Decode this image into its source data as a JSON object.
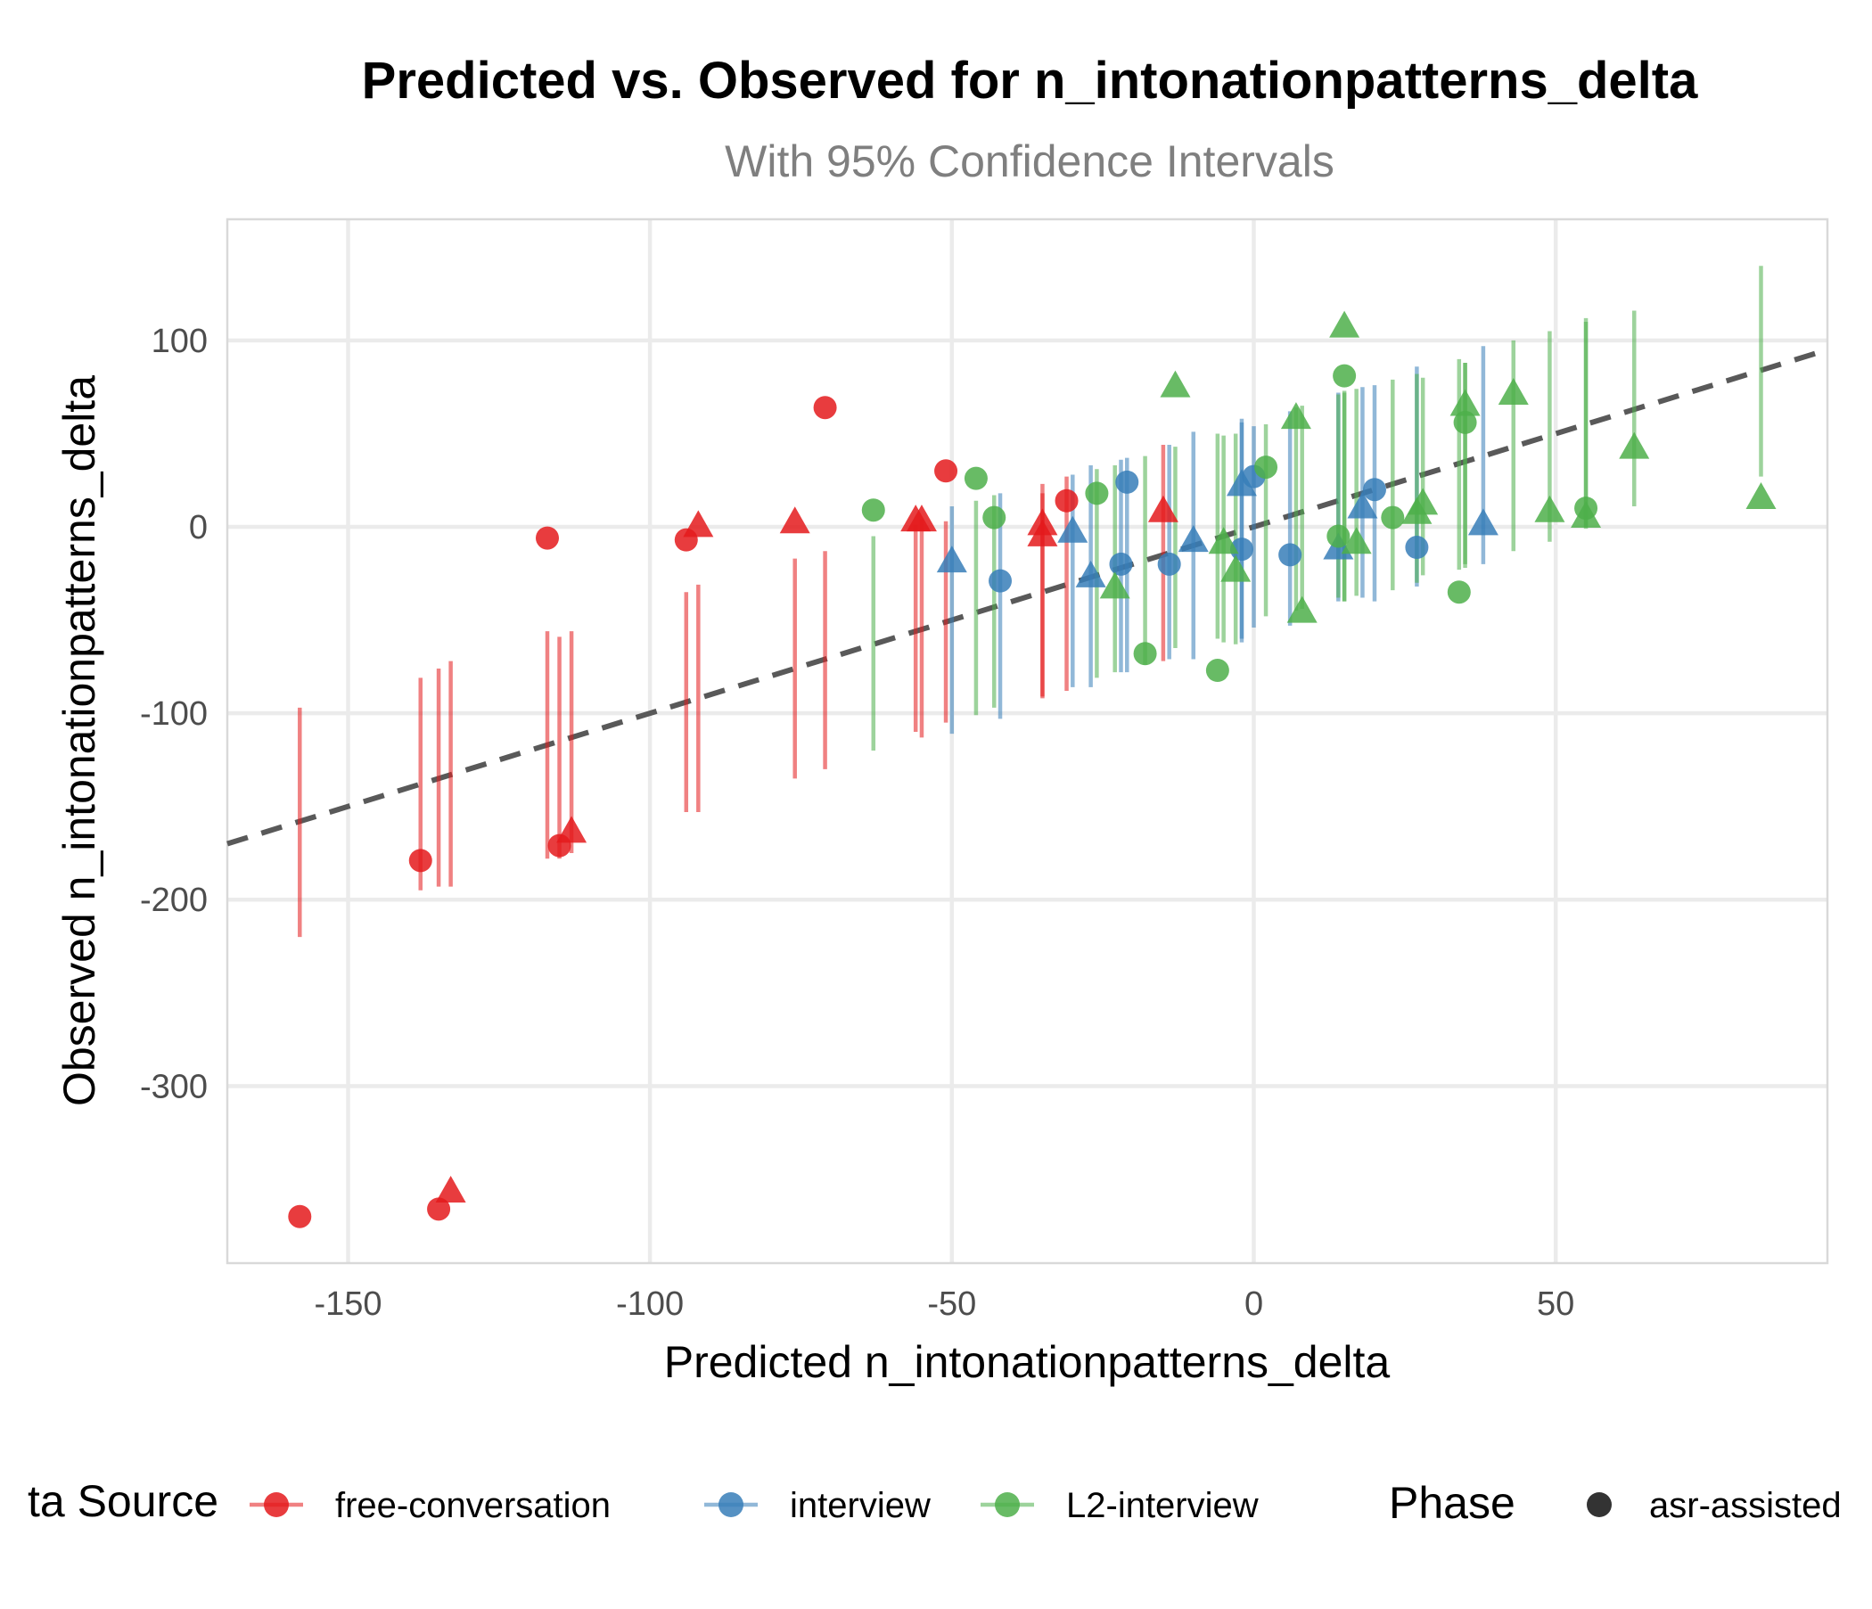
{
  "chart_data": {
    "type": "scatter",
    "title": "Predicted vs. Observed for n_intonationpatterns_delta",
    "subtitle": "With 95% Confidence Intervals",
    "xlabel": "Predicted n_intonationpatterns_delta",
    "ylabel": "Observed n_intonationpatterns_delta",
    "xlim": [
      -170,
      95
    ],
    "ylim": [
      -395,
      165
    ],
    "x_ticks": [
      -150,
      -100,
      -50,
      0,
      50
    ],
    "y_ticks": [
      -300,
      -200,
      -100,
      0,
      100
    ],
    "grid": true,
    "reference_line": {
      "type": "identity",
      "style": "dashed",
      "color": "#595959"
    },
    "legend": {
      "position": "bottom",
      "source_title": "ta Source",
      "phase_title": "Phase",
      "phase_label": "asr-assisted"
    },
    "series": [
      {
        "name": "free-conversation",
        "color": "#e41a1c",
        "points": [
          {
            "x": -158,
            "y": -370,
            "lo": -220,
            "hi": -97,
            "shape": "circle"
          },
          {
            "x": -138,
            "y": -179,
            "lo": -195,
            "hi": -81,
            "shape": "circle"
          },
          {
            "x": -135,
            "y": -366,
            "lo": -193,
            "hi": -76,
            "shape": "circle"
          },
          {
            "x": -133,
            "y": -357,
            "lo": -193,
            "hi": -72,
            "shape": "triangle"
          },
          {
            "x": -117,
            "y": -6,
            "lo": -178,
            "hi": -56,
            "shape": "circle"
          },
          {
            "x": -115,
            "y": -171,
            "lo": -178,
            "hi": -59,
            "shape": "circle"
          },
          {
            "x": -113,
            "y": -164,
            "lo": -175,
            "hi": -56,
            "shape": "triangle"
          },
          {
            "x": -94,
            "y": -7,
            "lo": -153,
            "hi": -35,
            "shape": "circle"
          },
          {
            "x": -92,
            "y": 0,
            "lo": -153,
            "hi": -31,
            "shape": "triangle"
          },
          {
            "x": -76,
            "y": 2,
            "lo": -135,
            "hi": -17,
            "shape": "triangle"
          },
          {
            "x": -71,
            "y": 64,
            "lo": -130,
            "hi": -13,
            "shape": "circle"
          },
          {
            "x": -56,
            "y": 3,
            "lo": -110,
            "hi": 1,
            "shape": "triangle"
          },
          {
            "x": -55,
            "y": 3,
            "lo": -113,
            "hi": 4,
            "shape": "triangle"
          },
          {
            "x": -51,
            "y": 30,
            "lo": -105,
            "hi": 3,
            "shape": "circle"
          },
          {
            "x": -35,
            "y": 1,
            "lo": -91,
            "hi": 23,
            "shape": "triangle"
          },
          {
            "x": -35,
            "y": -5,
            "lo": -92,
            "hi": 18,
            "shape": "triangle"
          },
          {
            "x": -31,
            "y": 14,
            "lo": -88,
            "hi": 27,
            "shape": "circle"
          },
          {
            "x": -15,
            "y": 8,
            "lo": -72,
            "hi": 44,
            "shape": "triangle"
          }
        ]
      },
      {
        "name": "interview",
        "color": "#377eb8",
        "points": [
          {
            "x": -50,
            "y": -19,
            "lo": -111,
            "hi": 11,
            "shape": "triangle"
          },
          {
            "x": -42,
            "y": -29,
            "lo": -103,
            "hi": 18,
            "shape": "circle"
          },
          {
            "x": -30,
            "y": -3,
            "lo": -86,
            "hi": 28,
            "shape": "triangle"
          },
          {
            "x": -27,
            "y": -27,
            "lo": -86,
            "hi": 33,
            "shape": "triangle"
          },
          {
            "x": -22,
            "y": -20,
            "lo": -78,
            "hi": 36,
            "shape": "circle"
          },
          {
            "x": -21,
            "y": 24,
            "lo": -78,
            "hi": 37,
            "shape": "circle"
          },
          {
            "x": -14,
            "y": -20,
            "lo": -71,
            "hi": 44,
            "shape": "circle"
          },
          {
            "x": -10,
            "y": -8,
            "lo": -71,
            "hi": 51,
            "shape": "triangle"
          },
          {
            "x": -2,
            "y": -12,
            "lo": -60,
            "hi": 56,
            "shape": "circle"
          },
          {
            "x": -2,
            "y": 22,
            "lo": -62,
            "hi": 58,
            "shape": "triangle"
          },
          {
            "x": 0,
            "y": 27,
            "lo": -54,
            "hi": 54,
            "shape": "circle"
          },
          {
            "x": 6,
            "y": -15,
            "lo": -53,
            "hi": 62,
            "shape": "circle"
          },
          {
            "x": 14,
            "y": -12,
            "lo": -40,
            "hi": 72,
            "shape": "triangle"
          },
          {
            "x": 18,
            "y": 10,
            "lo": -38,
            "hi": 75,
            "shape": "triangle"
          },
          {
            "x": 20,
            "y": 20,
            "lo": -40,
            "hi": 76,
            "shape": "circle"
          },
          {
            "x": 27,
            "y": -11,
            "lo": -32,
            "hi": 86,
            "shape": "circle"
          },
          {
            "x": 38,
            "y": 1,
            "lo": -20,
            "hi": 97,
            "shape": "triangle"
          }
        ]
      },
      {
        "name": "L2-interview",
        "color": "#4daf4a",
        "points": [
          {
            "x": -63,
            "y": 9,
            "lo": -120,
            "hi": -5,
            "shape": "circle"
          },
          {
            "x": -46,
            "y": 26,
            "lo": -101,
            "hi": 14,
            "shape": "circle"
          },
          {
            "x": -43,
            "y": 5,
            "lo": -97,
            "hi": 17,
            "shape": "circle"
          },
          {
            "x": -26,
            "y": 18,
            "lo": -81,
            "hi": 31,
            "shape": "circle"
          },
          {
            "x": -23,
            "y": -33,
            "lo": -78,
            "hi": 33,
            "shape": "triangle"
          },
          {
            "x": -18,
            "y": -68,
            "lo": -74,
            "hi": 38,
            "shape": "circle"
          },
          {
            "x": -13,
            "y": 75,
            "lo": -65,
            "hi": 43,
            "shape": "triangle"
          },
          {
            "x": -6,
            "y": -77,
            "lo": -60,
            "hi": 50,
            "shape": "circle"
          },
          {
            "x": -5,
            "y": -9,
            "lo": -62,
            "hi": 49,
            "shape": "triangle"
          },
          {
            "x": -3,
            "y": -24,
            "lo": -63,
            "hi": 50,
            "shape": "triangle"
          },
          {
            "x": 2,
            "y": 32,
            "lo": -48,
            "hi": 55,
            "shape": "circle"
          },
          {
            "x": 7,
            "y": 58,
            "lo": -45,
            "hi": 64,
            "shape": "triangle"
          },
          {
            "x": 8,
            "y": -46,
            "lo": -44,
            "hi": 65,
            "shape": "triangle"
          },
          {
            "x": 14,
            "y": -5,
            "lo": -38,
            "hi": 71,
            "shape": "circle"
          },
          {
            "x": 15,
            "y": 81,
            "lo": -40,
            "hi": 72,
            "shape": "circle"
          },
          {
            "x": 15,
            "y": 107,
            "lo": -40,
            "hi": 73,
            "shape": "triangle"
          },
          {
            "x": 17,
            "y": -9,
            "lo": -37,
            "hi": 74,
            "shape": "triangle"
          },
          {
            "x": 23,
            "y": 5,
            "lo": -34,
            "hi": 79,
            "shape": "circle"
          },
          {
            "x": 27,
            "y": 7,
            "lo": -30,
            "hi": 82,
            "shape": "triangle"
          },
          {
            "x": 28,
            "y": 12,
            "lo": -26,
            "hi": 80,
            "shape": "triangle"
          },
          {
            "x": 34,
            "y": -35,
            "lo": -23,
            "hi": 90,
            "shape": "circle"
          },
          {
            "x": 35,
            "y": 56,
            "lo": -22,
            "hi": 88,
            "shape": "circle"
          },
          {
            "x": 35,
            "y": 65,
            "lo": -20,
            "hi": 88,
            "shape": "triangle"
          },
          {
            "x": 43,
            "y": 71,
            "lo": -13,
            "hi": 100,
            "shape": "triangle"
          },
          {
            "x": 49,
            "y": 8,
            "lo": -8,
            "hi": 105,
            "shape": "triangle"
          },
          {
            "x": 55,
            "y": 10,
            "lo": 0,
            "hi": 112,
            "shape": "circle"
          },
          {
            "x": 55,
            "y": 5,
            "lo": -1,
            "hi": 110,
            "shape": "triangle"
          },
          {
            "x": 63,
            "y": 42,
            "lo": 11,
            "hi": 116,
            "shape": "triangle"
          },
          {
            "x": 84,
            "y": 15,
            "lo": 27,
            "hi": 140,
            "shape": "triangle"
          }
        ]
      }
    ]
  }
}
